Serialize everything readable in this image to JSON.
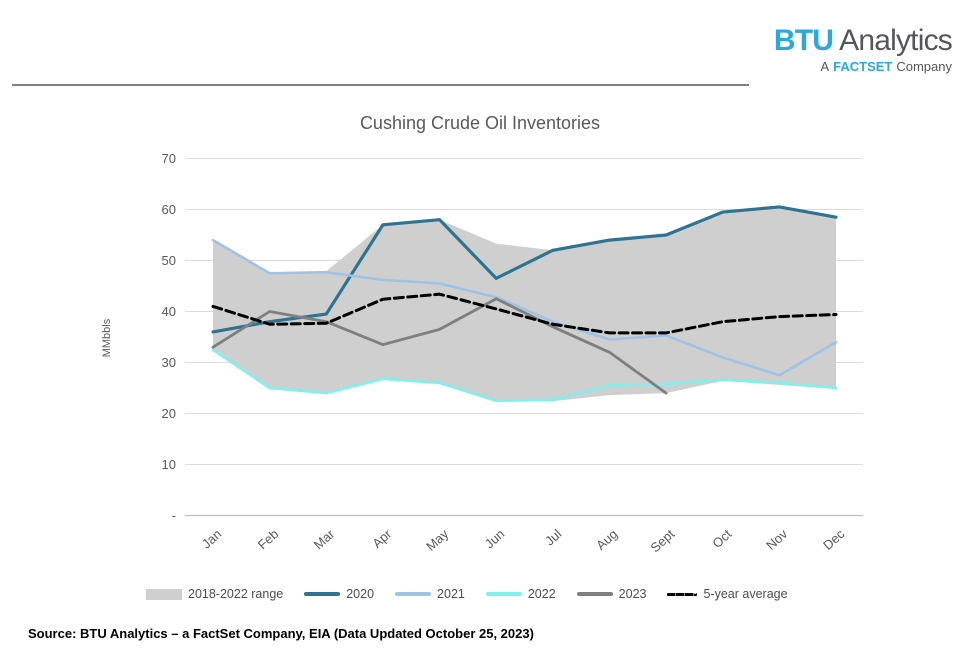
{
  "logo": {
    "btu": "BTU",
    "analytics": "Analytics",
    "sub_prefix": "A",
    "sub_brand": "FACTSET",
    "sub_suffix": "Company"
  },
  "title": "Cushing Crude Oil Inventories",
  "source": "Source: BTU Analytics – a FactSet Company, EIA (Data Updated October 25, 2023)",
  "y_axis": {
    "label": "MMbbls",
    "ticks": [
      "70",
      "60",
      "50",
      "40",
      "30",
      "20",
      "10",
      "-"
    ],
    "tick_values": [
      70,
      60,
      50,
      40,
      30,
      20,
      10,
      0
    ]
  },
  "colors": {
    "background": "#FFFFFF",
    "logo_blue": "#29A9E0",
    "logo_gray": "#54565A",
    "rule_gray": "#7F7F7F",
    "title_gray": "#595959",
    "grid": "#DBDBDB",
    "axis": "#BFBFBF"
  },
  "chart_data": {
    "type": "line",
    "title": "Cushing Crude Oil Inventories",
    "xlabel": "",
    "ylabel": "MMbbls",
    "ylim": [
      0,
      70
    ],
    "grid": "horizontal",
    "legend_position": "bottom",
    "categories": [
      "Jan",
      "Feb",
      "Mar",
      "Apr",
      "May",
      "Jun",
      "Jul",
      "Aug",
      "Sept",
      "Oct",
      "Nov",
      "Dec"
    ],
    "band": {
      "name": "2018-2022 range",
      "color": "#CFCFCF",
      "upper": [
        54,
        47.7,
        47.9,
        57,
        58,
        53.3,
        52,
        54,
        55,
        59.5,
        60.5,
        58.5
      ],
      "lower": [
        32.3,
        24.8,
        23.9,
        26.6,
        25.8,
        22.3,
        22.4,
        23.6,
        24,
        26.4,
        25.6,
        24.8
      ]
    },
    "series": [
      {
        "name": "2020",
        "color": "#2E7490",
        "style": "solid",
        "values": [
          36,
          38,
          39.5,
          57,
          58,
          46.5,
          52,
          54,
          55,
          59.5,
          60.5,
          58.5
        ]
      },
      {
        "name": "2021",
        "color": "#9DC3E6",
        "style": "solid",
        "values": [
          54,
          47.5,
          47.7,
          46.2,
          45.5,
          42.8,
          38,
          34.5,
          35.3,
          31,
          27.5,
          34
        ]
      },
      {
        "name": "2022",
        "color": "#7EF0EE",
        "style": "solid",
        "values": [
          32.5,
          25,
          24,
          26.8,
          26,
          22.5,
          22.7,
          25.5,
          25.8,
          26.6,
          26,
          25
        ]
      },
      {
        "name": "2023",
        "color": "#7F7F7F",
        "style": "solid",
        "values": [
          33,
          40,
          38,
          33.5,
          36.5,
          42.5,
          37,
          32,
          24
        ]
      },
      {
        "name": "5-year average",
        "color": "#000000",
        "style": "dashed",
        "values": [
          41,
          37.5,
          37.7,
          42.4,
          43.4,
          40.5,
          37.5,
          35.8,
          35.8,
          38,
          39,
          39.4
        ]
      }
    ]
  }
}
